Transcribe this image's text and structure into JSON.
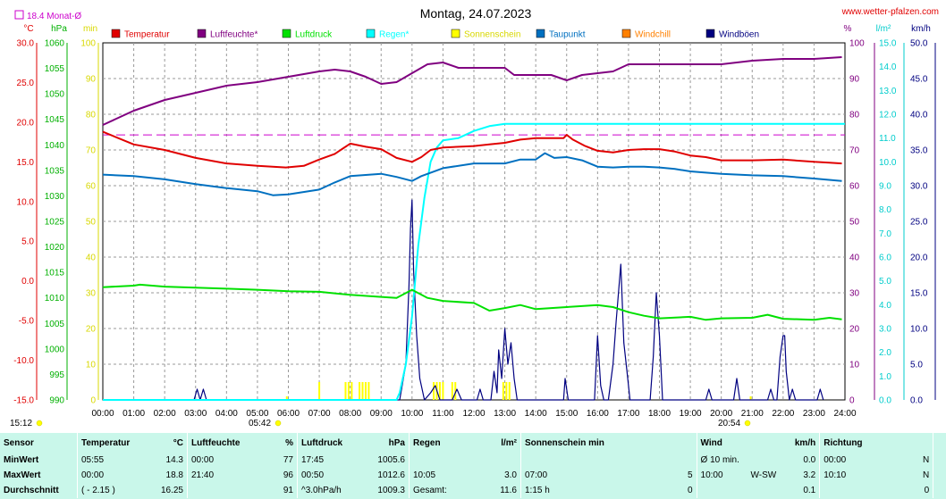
{
  "header": {
    "title": "Montag, 24.07.2023",
    "site": "www.wetter-pfalzen.com",
    "monthly_avg": "18.4 Monat-Ø",
    "time_start": "15:12",
    "sunrise": "05:42",
    "sunset": "20:54"
  },
  "colors": {
    "temperature": "#e00000",
    "humidity": "#800080",
    "pressure": "#00e000",
    "rain": "#00ffff",
    "sunshine": "#ffff00",
    "dewpoint": "#0070c0",
    "windchill": "#ff8000",
    "gusts": "#000080",
    "avg_line": "#cc00cc"
  },
  "chart_data": {
    "type": "line",
    "title": "Montag, 24.07.2023",
    "x_tick_labels": [
      "00:00",
      "01:00",
      "02:00",
      "03:00",
      "04:00",
      "05:00",
      "06:00",
      "07:00",
      "08:00",
      "09:00",
      "10:00",
      "11:00",
      "12:00",
      "13:00",
      "14:00",
      "15:00",
      "16:00",
      "17:00",
      "18:00",
      "19:00",
      "20:00",
      "21:00",
      "22:00",
      "23:00",
      "24:00"
    ],
    "axes": [
      {
        "unit": "°C",
        "min": -15,
        "max": 30,
        "step": 5,
        "ticks": [
          "30.0",
          "25.0",
          "20.0",
          "15.0",
          "10.0",
          "5.0",
          "0.0",
          "-5.0",
          "-10.0",
          "-15.0"
        ],
        "color": "#e00000"
      },
      {
        "unit": "hPa",
        "min": 990,
        "max": 1060,
        "step": 5,
        "ticks": [
          "1060",
          "1055",
          "1050",
          "1045",
          "1040",
          "1035",
          "1030",
          "1025",
          "1020",
          "1015",
          "1010",
          "1005",
          "1000",
          "995",
          "990"
        ],
        "color": "#00e000"
      },
      {
        "unit": "min",
        "min": 0,
        "max": 100,
        "step": 10,
        "ticks": [
          "100",
          "90",
          "80",
          "70",
          "60",
          "50",
          "40",
          "30",
          "20",
          "10",
          "0"
        ],
        "color": "#ffff00"
      },
      {
        "unit": "%",
        "min": 0,
        "max": 100,
        "step": 10,
        "ticks": [
          "100",
          "90",
          "80",
          "70",
          "60",
          "50",
          "40",
          "30",
          "20",
          "10",
          "0"
        ],
        "color": "#800080"
      },
      {
        "unit": "l/m²",
        "min": 0,
        "max": 15,
        "step": 1,
        "ticks": [
          "15.0",
          "14.0",
          "13.0",
          "12.0",
          "11.0",
          "10.0",
          "9.0",
          "8.0",
          "7.0",
          "6.0",
          "5.0",
          "4.0",
          "3.0",
          "2.0",
          "1.0",
          "0.0"
        ],
        "color": "#00cccc"
      },
      {
        "unit": "km/h",
        "min": 0,
        "max": 50,
        "step": 5,
        "ticks": [
          "50.0",
          "45.0",
          "40.0",
          "35.0",
          "30.0",
          "25.0",
          "20.0",
          "15.0",
          "10.0",
          "5.0",
          "0.0"
        ],
        "color": "#000000"
      }
    ],
    "legend": [
      {
        "name": "Temperatur",
        "color": "#e00000"
      },
      {
        "name": "Luftfeuchte*",
        "color": "#800080"
      },
      {
        "name": "Luftdruck",
        "color": "#00e000"
      },
      {
        "name": "Regen*",
        "color": "#00ffff"
      },
      {
        "name": "Sonnenschein",
        "color": "#ffff00"
      },
      {
        "name": "Taupunkt",
        "color": "#0070c0"
      },
      {
        "name": "Windchill",
        "color": "#ff8000"
      },
      {
        "name": "Windböen",
        "color": "#000080"
      }
    ],
    "monthly_avg_temp": 18.4,
    "series": {
      "temperature": [
        [
          0,
          18.8
        ],
        [
          1,
          17.2
        ],
        [
          2,
          16.5
        ],
        [
          3,
          15.5
        ],
        [
          4,
          14.8
        ],
        [
          5,
          14.5
        ],
        [
          5.92,
          14.3
        ],
        [
          6.5,
          14.5
        ],
        [
          7,
          15.3
        ],
        [
          7.5,
          16.0
        ],
        [
          8,
          17.3
        ],
        [
          8.5,
          16.9
        ],
        [
          9,
          16.6
        ],
        [
          9.5,
          15.5
        ],
        [
          10,
          15.0
        ],
        [
          10.3,
          15.6
        ],
        [
          10.6,
          16.5
        ],
        [
          11,
          16.8
        ],
        [
          12,
          17.0
        ],
        [
          12.5,
          17.2
        ],
        [
          13,
          17.4
        ],
        [
          13.5,
          17.8
        ],
        [
          14,
          18.0
        ],
        [
          14.5,
          18.0
        ],
        [
          14.9,
          18.0
        ],
        [
          15,
          18.4
        ],
        [
          15.2,
          17.8
        ],
        [
          15.6,
          17.0
        ],
        [
          16,
          16.4
        ],
        [
          16.5,
          16.2
        ],
        [
          17,
          16.5
        ],
        [
          17.5,
          16.6
        ],
        [
          18,
          16.6
        ],
        [
          18.5,
          16.3
        ],
        [
          19,
          15.8
        ],
        [
          19.5,
          15.6
        ],
        [
          20,
          15.2
        ],
        [
          21,
          15.2
        ],
        [
          22,
          15.3
        ],
        [
          23,
          15.0
        ],
        [
          23.5,
          14.9
        ],
        [
          23.9,
          14.8
        ]
      ],
      "humidity": [
        [
          0,
          77
        ],
        [
          1,
          81
        ],
        [
          2,
          84
        ],
        [
          3,
          86
        ],
        [
          4,
          88
        ],
        [
          5,
          89
        ],
        [
          6,
          90.5
        ],
        [
          7,
          92
        ],
        [
          7.5,
          92.5
        ],
        [
          8,
          92
        ],
        [
          8.5,
          90.5
        ],
        [
          9,
          88.5
        ],
        [
          9.5,
          89
        ],
        [
          10,
          91.5
        ],
        [
          10.5,
          94
        ],
        [
          11,
          94.5
        ],
        [
          11.5,
          93
        ],
        [
          12,
          93
        ],
        [
          13,
          93
        ],
        [
          13.3,
          91
        ],
        [
          14,
          91
        ],
        [
          14.5,
          91
        ],
        [
          15,
          89.5
        ],
        [
          15.5,
          91
        ],
        [
          16,
          91.5
        ],
        [
          16.5,
          92
        ],
        [
          17,
          94
        ],
        [
          18,
          94
        ],
        [
          19,
          94
        ],
        [
          20,
          94
        ],
        [
          21,
          95
        ],
        [
          22,
          95.5
        ],
        [
          23,
          95.5
        ],
        [
          23.9,
          96
        ]
      ],
      "pressure": [
        [
          0,
          1012.1
        ],
        [
          1,
          1012.4
        ],
        [
          1.2,
          1012.6
        ],
        [
          2,
          1012.2
        ],
        [
          3,
          1012.0
        ],
        [
          4,
          1011.8
        ],
        [
          5,
          1011.6
        ],
        [
          6,
          1011.3
        ],
        [
          7,
          1011.2
        ],
        [
          8,
          1010.6
        ],
        [
          9,
          1010.2
        ],
        [
          9.5,
          1010.0
        ],
        [
          10,
          1011.6
        ],
        [
          10.5,
          1010.0
        ],
        [
          11,
          1009.4
        ],
        [
          12,
          1009.0
        ],
        [
          12.5,
          1007.5
        ],
        [
          13,
          1008.0
        ],
        [
          13.5,
          1008.6
        ],
        [
          14,
          1007.8
        ],
        [
          15,
          1008.2
        ],
        [
          16,
          1008.6
        ],
        [
          16.5,
          1008.2
        ],
        [
          17,
          1007.2
        ],
        [
          17.5,
          1006.5
        ],
        [
          18,
          1006.0
        ],
        [
          19,
          1006.3
        ],
        [
          19.5,
          1005.7
        ],
        [
          20,
          1006.0
        ],
        [
          21,
          1006.1
        ],
        [
          21.5,
          1006.7
        ],
        [
          22,
          1005.9
        ],
        [
          23,
          1005.7
        ],
        [
          23.5,
          1006.1
        ],
        [
          23.9,
          1005.8
        ]
      ],
      "dewpoint": [
        [
          0,
          13.4
        ],
        [
          1,
          13.2
        ],
        [
          2,
          12.8
        ],
        [
          3,
          12.2
        ],
        [
          4,
          11.7
        ],
        [
          5,
          11.3
        ],
        [
          5.5,
          10.8
        ],
        [
          6,
          10.9
        ],
        [
          7,
          11.5
        ],
        [
          7.5,
          12.4
        ],
        [
          8,
          13.2
        ],
        [
          9,
          13.5
        ],
        [
          9.5,
          13.1
        ],
        [
          10,
          12.6
        ],
        [
          10.3,
          13.2
        ],
        [
          11,
          14.2
        ],
        [
          12,
          14.8
        ],
        [
          13,
          14.8
        ],
        [
          13.5,
          15.3
        ],
        [
          14,
          15.3
        ],
        [
          14.3,
          16.1
        ],
        [
          14.6,
          15.5
        ],
        [
          15,
          15.6
        ],
        [
          15.5,
          15.2
        ],
        [
          16,
          14.4
        ],
        [
          16.5,
          14.3
        ],
        [
          17,
          14.4
        ],
        [
          17.5,
          14.4
        ],
        [
          18,
          14.3
        ],
        [
          18.5,
          14.1
        ],
        [
          19,
          13.8
        ],
        [
          20,
          13.5
        ],
        [
          21,
          13.3
        ],
        [
          22,
          13.2
        ],
        [
          23,
          12.9
        ],
        [
          23.9,
          12.6
        ]
      ],
      "rain_cumulative": [
        [
          0,
          0
        ],
        [
          9.5,
          0
        ],
        [
          9.6,
          0.3
        ],
        [
          9.8,
          1.5
        ],
        [
          10,
          3.5
        ],
        [
          10.2,
          6.5
        ],
        [
          10.4,
          8.5
        ],
        [
          10.6,
          10.0
        ],
        [
          10.8,
          10.6
        ],
        [
          11,
          10.9
        ],
        [
          11.5,
          11.0
        ],
        [
          12,
          11.3
        ],
        [
          12.5,
          11.5
        ],
        [
          13,
          11.6
        ],
        [
          24,
          11.6
        ]
      ],
      "gusts": [
        [
          2.95,
          0
        ],
        [
          3.05,
          1.5
        ],
        [
          3.15,
          0
        ],
        [
          3.25,
          1.5
        ],
        [
          3.35,
          0
        ],
        [
          9.6,
          0
        ],
        [
          9.8,
          5
        ],
        [
          9.9,
          16
        ],
        [
          9.95,
          24
        ],
        [
          10,
          28
        ],
        [
          10.05,
          18
        ],
        [
          10.15,
          9
        ],
        [
          10.25,
          3
        ],
        [
          10.4,
          0
        ],
        [
          10.6,
          1
        ],
        [
          10.75,
          2
        ],
        [
          10.9,
          0
        ],
        [
          11.3,
          0
        ],
        [
          11.45,
          1.5
        ],
        [
          11.6,
          0
        ],
        [
          12.1,
          0
        ],
        [
          12.2,
          1.5
        ],
        [
          12.3,
          0
        ],
        [
          12.55,
          0
        ],
        [
          12.65,
          4
        ],
        [
          12.75,
          1
        ],
        [
          12.8,
          7
        ],
        [
          12.9,
          3
        ],
        [
          13.0,
          10
        ],
        [
          13.1,
          5
        ],
        [
          13.2,
          8
        ],
        [
          13.3,
          3
        ],
        [
          13.4,
          0
        ],
        [
          14.9,
          0
        ],
        [
          14.95,
          3
        ],
        [
          15.05,
          0
        ],
        [
          15.9,
          0
        ],
        [
          16.0,
          9
        ],
        [
          16.1,
          2
        ],
        [
          16.2,
          0
        ],
        [
          16.35,
          0
        ],
        [
          16.5,
          5
        ],
        [
          16.6,
          11
        ],
        [
          16.75,
          19
        ],
        [
          16.85,
          8
        ],
        [
          16.95,
          4
        ],
        [
          17.05,
          0
        ],
        [
          17.7,
          0
        ],
        [
          17.8,
          6
        ],
        [
          17.9,
          15
        ],
        [
          18.0,
          9
        ],
        [
          18.1,
          0
        ],
        [
          19.5,
          0
        ],
        [
          19.6,
          1.5
        ],
        [
          19.7,
          0
        ],
        [
          20.4,
          0
        ],
        [
          20.5,
          3
        ],
        [
          20.6,
          0
        ],
        [
          21.5,
          0
        ],
        [
          21.6,
          1.5
        ],
        [
          21.7,
          0
        ],
        [
          21.8,
          0
        ],
        [
          21.9,
          6
        ],
        [
          22.0,
          9
        ],
        [
          22.05,
          9
        ],
        [
          22.1,
          4
        ],
        [
          22.2,
          0
        ],
        [
          22.3,
          1.5
        ],
        [
          22.4,
          0
        ],
        [
          23.1,
          0
        ],
        [
          23.2,
          1.5
        ],
        [
          23.3,
          0
        ]
      ],
      "sunshine": [
        [
          5.95,
          1
        ],
        [
          7.0,
          5
        ],
        [
          7.85,
          5
        ],
        [
          7.95,
          5
        ],
        [
          8.05,
          5
        ],
        [
          8.3,
          5
        ],
        [
          8.4,
          5
        ],
        [
          8.5,
          5
        ],
        [
          8.6,
          5
        ],
        [
          10.7,
          5
        ],
        [
          10.8,
          5
        ],
        [
          10.9,
          5
        ],
        [
          11.0,
          5
        ],
        [
          11.3,
          5
        ],
        [
          11.4,
          5
        ],
        [
          12.95,
          5
        ],
        [
          13.05,
          5
        ],
        [
          13.15,
          5
        ],
        [
          20.95,
          1
        ]
      ]
    }
  },
  "table": {
    "headers": {
      "sensor": "Sensor",
      "temp": "Temperatur",
      "temp_unit": "°C",
      "hum": "Luftfeuchte",
      "hum_unit": "%",
      "press": "Luftdruck",
      "press_unit": "hPa",
      "rain": "Regen",
      "rain_unit": "l/m²",
      "sun": "Sonnenschein min",
      "wind": "Wind",
      "wind_unit": "km/h",
      "dir": "Richtung"
    },
    "rows": [
      {
        "label": "MinWert",
        "temp_time": "05:55",
        "temp_val": "14.3",
        "hum_time": "00:00",
        "hum_val": "77",
        "press_time": "17:45",
        "press_val": "1005.6",
        "rain_time": "",
        "rain_val": "",
        "sun_time": "",
        "sun_val": "",
        "wind_time": "Ø 10 min.",
        "wind_dir": "",
        "wind_val": "0.0",
        "dir_time": "00:00",
        "dir_val": "N"
      },
      {
        "label": "MaxWert",
        "temp_time": "00:00",
        "temp_val": "18.8",
        "hum_time": "21:40",
        "hum_val": "96",
        "press_time": "00:50",
        "press_val": "1012.6",
        "rain_time": "10:05",
        "rain_val": "3.0",
        "sun_time": "07:00",
        "sun_val": "5",
        "wind_time": "10:00",
        "wind_dir": "W-SW",
        "wind_val": "3.2",
        "dir_time": "10:10",
        "dir_val": "N"
      },
      {
        "label": "Durchschnitt",
        "temp_time": "( - 2.15 )",
        "temp_val": "16.25",
        "hum_time": "",
        "hum_val": "91",
        "press_time": "^3.0hPa/h",
        "press_val": "1009.3",
        "rain_time": "Gesamt:",
        "rain_val": "11.6",
        "sun_time": "1:15 h",
        "sun_val": "0",
        "wind_time": "",
        "wind_dir": "",
        "wind_val": "0.1",
        "dir_time": "",
        "dir_val": "0"
      }
    ]
  }
}
